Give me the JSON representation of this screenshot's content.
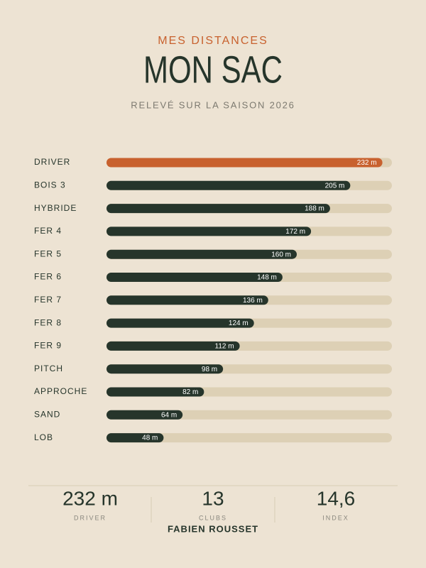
{
  "chart_data": {
    "type": "hbar",
    "kicker": "MES DISTANCES",
    "title": "MON SAC",
    "subtitle": "RELEVÉ SUR LA SAISON 2026",
    "categories": [
      "DRIVER",
      "BOIS 3",
      "HYBRIDE",
      "FER 4",
      "FER 5",
      "FER 6",
      "FER 7",
      "FER 8",
      "FER 9",
      "PITCH",
      "APPROCHE",
      "SAND",
      "LOB"
    ],
    "values": [
      232,
      205,
      188,
      172,
      160,
      148,
      136,
      124,
      112,
      98,
      82,
      64,
      48
    ],
    "value_labels": [
      "232 m",
      "205 m",
      "188 m",
      "172 m",
      "160 m",
      "148 m",
      "136 m",
      "124 m",
      "112 m",
      "98 m",
      "82 m",
      "64 m",
      "48 m"
    ],
    "colors": [
      "#c8612e",
      "#26352b",
      "#26352b",
      "#26352b",
      "#26352b",
      "#26352b",
      "#26352b",
      "#26352b",
      "#26352b",
      "#26352b",
      "#26352b",
      "#26352b",
      "#26352b"
    ],
    "track_color": "#ddd0b5",
    "xlim": [
      0,
      240
    ]
  },
  "footer": {
    "stats": [
      {
        "value": "232 m",
        "label": "DRIVER"
      },
      {
        "value": 13,
        "label": "CLUBS"
      },
      {
        "value": "14,6",
        "label": "INDEX"
      }
    ],
    "name": "FABIEN ROUSSET"
  }
}
